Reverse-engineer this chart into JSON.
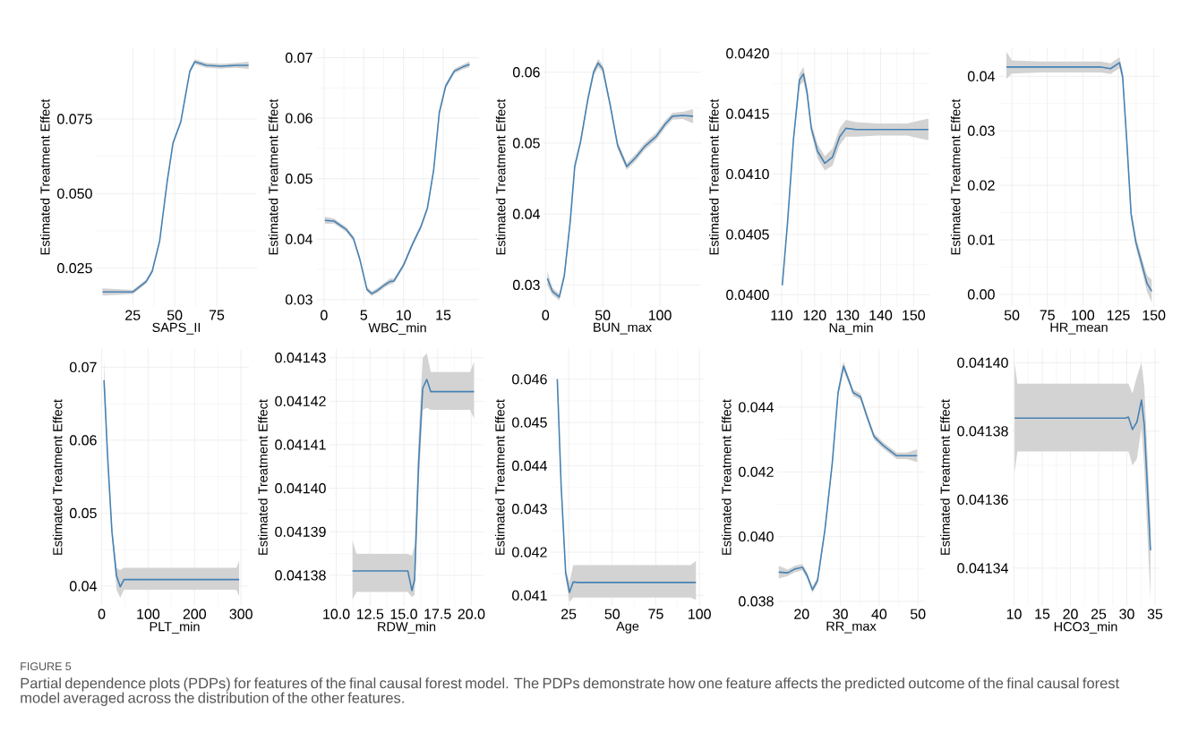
{
  "chart_data": [
    {
      "type": "line",
      "xlabel": "SAPS_II",
      "ylabel": "Estimated Treatment Effect",
      "grid": true,
      "xlim": [
        3,
        99
      ],
      "ylim": [
        0.012,
        0.099
      ],
      "xticks": [
        25,
        50,
        75
      ],
      "yticks": [
        {
          "value": 0.025,
          "label": "0.025"
        },
        {
          "value": 0.05,
          "label": "0.050"
        },
        {
          "value": 0.075,
          "label": "0.075"
        }
      ],
      "annotations": [
        "FIGURE 5",
        "Partial dependence plots (PDPs) for features of the final causal forest model. The PDPs demonstrate how one feature affects the predicted outcome of the final causal forest model averaged across the distribution of the other features."
      ],
      "x": [
        7,
        25,
        33,
        36.6,
        41,
        45.5,
        49,
        53.6,
        59,
        62,
        68.8,
        77.7,
        86.6,
        94
      ],
      "series": [
        {
          "color": "#4682b4",
          "values": [
            0.017,
            0.017,
            0.0205,
            0.024,
            0.034,
            0.054,
            0.067,
            0.074,
            0.091,
            0.0942,
            0.093,
            0.0927,
            0.093,
            0.093
          ],
          "lower": [
            0.0158,
            0.0163,
            0.0198,
            0.0233,
            0.0333,
            0.0533,
            0.0663,
            0.0733,
            0.0903,
            0.0934,
            0.0922,
            0.0919,
            0.0922,
            0.0918
          ],
          "upper": [
            0.0182,
            0.0177,
            0.0212,
            0.0247,
            0.0347,
            0.0547,
            0.0677,
            0.0747,
            0.0917,
            0.095,
            0.0938,
            0.0935,
            0.0938,
            0.0942
          ]
        }
      ]
    },
    {
      "type": "line",
      "xlabel": "WBC_min",
      "ylabel": "Estimated Treatment Effect",
      "grid": true,
      "xlim": [
        -1,
        19.5
      ],
      "ylim": [
        0.0288,
        0.0717
      ],
      "xticks": [
        0,
        5,
        10,
        15
      ],
      "yticks": [
        0.03,
        0.04,
        0.05,
        0.06,
        0.07
      ],
      "x": [
        0.1,
        1.25,
        2.8,
        3.7,
        4.5,
        5.4,
        6.0,
        6.7,
        7.7,
        8.3,
        8.8,
        10.0,
        11.1,
        12.2,
        13.0,
        13.8,
        14.5,
        15.3,
        16.4,
        17.5,
        18.3
      ],
      "series": [
        {
          "color": "#4682b4",
          "values": [
            0.0431,
            0.043,
            0.0416,
            0.0401,
            0.0367,
            0.0317,
            0.031,
            0.0315,
            0.0325,
            0.033,
            0.0331,
            0.0357,
            0.0391,
            0.0421,
            0.0451,
            0.0515,
            0.0609,
            0.0653,
            0.0678,
            0.0685,
            0.0689
          ],
          "lower": [
            0.0425,
            0.0426,
            0.0412,
            0.0397,
            0.0363,
            0.0313,
            0.0306,
            0.0311,
            0.0321,
            0.0325,
            0.0327,
            0.0353,
            0.0387,
            0.0417,
            0.0447,
            0.0511,
            0.0605,
            0.0649,
            0.0674,
            0.0681,
            0.0684
          ],
          "upper": [
            0.0437,
            0.0434,
            0.042,
            0.0405,
            0.0371,
            0.0321,
            0.0314,
            0.0319,
            0.0329,
            0.0335,
            0.0335,
            0.0361,
            0.0395,
            0.0425,
            0.0455,
            0.0519,
            0.0613,
            0.0657,
            0.0682,
            0.0689,
            0.0694
          ]
        }
      ]
    },
    {
      "type": "line",
      "xlabel": "BUN_max",
      "ylabel": "Estimated Treatment Effect",
      "grid": true,
      "xlim": [
        -1.8,
        136
      ],
      "ylim": [
        0.0269,
        0.0635
      ],
      "xticks": [
        0,
        50,
        100
      ],
      "yticks": [
        0.03,
        0.04,
        0.05,
        0.06
      ],
      "x": [
        1.6,
        6,
        12,
        16.4,
        21.6,
        25.5,
        30.6,
        37,
        42,
        46,
        50,
        56.6,
        63,
        71,
        79,
        86.5,
        97,
        104.7,
        111,
        120,
        129
      ],
      "series": [
        {
          "color": "#4682b4",
          "values": [
            0.0309,
            0.0291,
            0.0283,
            0.0313,
            0.039,
            0.0467,
            0.0502,
            0.0562,
            0.06,
            0.0613,
            0.0605,
            0.0553,
            0.0497,
            0.0467,
            0.048,
            0.0495,
            0.051,
            0.0527,
            0.0538,
            0.0539,
            0.0538
          ],
          "lower": [
            0.0299,
            0.0286,
            0.0278,
            0.0308,
            0.0385,
            0.0462,
            0.0497,
            0.0557,
            0.0595,
            0.0607,
            0.06,
            0.0548,
            0.0492,
            0.0462,
            0.0475,
            0.049,
            0.0505,
            0.0522,
            0.0533,
            0.0534,
            0.0528
          ],
          "upper": [
            0.0319,
            0.0296,
            0.0288,
            0.0318,
            0.0395,
            0.0472,
            0.0507,
            0.0567,
            0.0605,
            0.0619,
            0.061,
            0.0558,
            0.0502,
            0.0472,
            0.0485,
            0.05,
            0.0515,
            0.0532,
            0.0543,
            0.0544,
            0.0548
          ]
        }
      ]
    },
    {
      "type": "line",
      "xlabel": "Na_min",
      "ylabel": "Estimated Treatment Effect",
      "grid": true,
      "xlim": [
        107.3,
        154.8
      ],
      "ylim": [
        0.0399,
        0.04205
      ],
      "xticks": [
        110,
        120,
        130,
        140,
        150
      ],
      "yticks": [
        {
          "value": 0.04,
          "label": "0.0400"
        },
        0.0405,
        {
          "value": 0.041,
          "label": "0.0410"
        },
        0.0415,
        {
          "value": 0.042,
          "label": "0.0420"
        }
      ],
      "x": [
        110.2,
        111.8,
        113.6,
        115.4,
        116.6,
        117.7,
        119,
        120.9,
        123.1,
        125.4,
        127.6,
        129.5,
        132.6,
        139,
        148,
        154.5
      ],
      "series": [
        {
          "color": "#4682b4",
          "values": [
            0.04008,
            0.0406,
            0.04129,
            0.04178,
            0.04183,
            0.04168,
            0.04138,
            0.04119,
            0.04109,
            0.04114,
            0.04131,
            0.04138,
            0.04137,
            0.04137,
            0.04137,
            0.04137
          ],
          "lower": [
            0.04007,
            0.04059,
            0.04127,
            0.04173,
            0.04177,
            0.04163,
            0.04134,
            0.04113,
            0.04103,
            0.04107,
            0.04124,
            0.04131,
            0.04131,
            0.04132,
            0.04132,
            0.04128
          ],
          "upper": [
            0.04009,
            0.04061,
            0.04131,
            0.04183,
            0.04189,
            0.04173,
            0.04142,
            0.04125,
            0.04115,
            0.04121,
            0.04138,
            0.04145,
            0.04143,
            0.04142,
            0.04142,
            0.04146
          ]
        }
      ]
    },
    {
      "type": "line",
      "xlabel": "HR_mean",
      "ylabel": "Estimated Treatment Effect",
      "grid": true,
      "xlim": [
        40.5,
        154
      ],
      "ylim": [
        -0.0023,
        0.0453
      ],
      "xticks": [
        50,
        75,
        100,
        125,
        150
      ],
      "yticks": [
        {
          "value": 0,
          "label": "0.00"
        },
        0.01,
        0.02,
        0.03,
        0.04
      ],
      "x": [
        46.2,
        50,
        71,
        92,
        113,
        119.5,
        125.8,
        128,
        131,
        134,
        137.4,
        141.6,
        145.2,
        148.5
      ],
      "series": [
        {
          "color": "#4682b4",
          "values": [
            0.0417,
            0.0417,
            0.0417,
            0.0417,
            0.0417,
            0.0414,
            0.0425,
            0.04,
            0.0279,
            0.0147,
            0.0095,
            0.0055,
            0.002,
            0.0006
          ],
          "lower": [
            0.0395,
            0.0405,
            0.0407,
            0.0407,
            0.0407,
            0.0404,
            0.0415,
            0.039,
            0.027,
            0.0138,
            0.0085,
            0.0043,
            0.0005,
            -0.0015
          ],
          "upper": [
            0.0445,
            0.0429,
            0.0427,
            0.0427,
            0.0427,
            0.0424,
            0.0435,
            0.041,
            0.0288,
            0.0156,
            0.0105,
            0.0067,
            0.0035,
            0.0027
          ]
        }
      ]
    },
    {
      "type": "line",
      "xlabel": "PLT_min",
      "ylabel": "Estimated Treatment Effect",
      "grid": true,
      "xlim": [
        -3,
        317
      ],
      "ylim": [
        0.0373,
        0.0725
      ],
      "xticks": [
        0,
        100,
        200,
        300
      ],
      "yticks": [
        0.04,
        0.05,
        0.06,
        0.07
      ],
      "x": [
        5,
        12.8,
        22,
        32,
        40,
        48,
        61,
        160,
        290,
        296
      ],
      "series": [
        {
          "color": "#4682b4",
          "values": [
            0.0682,
            0.0577,
            0.0475,
            0.0414,
            0.0399,
            0.0409,
            0.0409,
            0.0409,
            0.0409,
            0.0409
          ],
          "lower": [
            0.0675,
            0.0572,
            0.0468,
            0.0395,
            0.0384,
            0.0395,
            0.0395,
            0.0395,
            0.0395,
            0.0386
          ],
          "upper": [
            0.071,
            0.0582,
            0.0482,
            0.0425,
            0.0422,
            0.0425,
            0.0425,
            0.0425,
            0.0425,
            0.0435
          ]
        }
      ]
    },
    {
      "type": "line",
      "xlabel": "RDW_min",
      "ylabel": "Estimated Treatment Effect",
      "grid": true,
      "xlim": [
        9.5,
        20.9
      ],
      "ylim": [
        0.041373,
        0.041432
      ],
      "xticks": [
        {
          "value": 10,
          "label": "10.0"
        },
        12.5,
        {
          "value": 15,
          "label": "15.0"
        },
        17.5,
        {
          "value": 20,
          "label": "20.0"
        }
      ],
      "yticks": [
        0.04138,
        0.04139,
        {
          "value": 0.0414,
          "label": "0.04140"
        },
        0.04141,
        0.04142,
        0.04143
      ],
      "x": [
        11.2,
        11.5,
        15.3,
        15.6,
        15.8,
        16.1,
        16.4,
        16.7,
        17.0,
        18.0,
        19.9,
        20.2
      ],
      "series": [
        {
          "color": "#4682b4",
          "values": [
            0.041381,
            0.041381,
            0.041381,
            0.0413765,
            0.041379,
            0.041406,
            0.041423,
            0.041425,
            0.0414222,
            0.0414222,
            0.0414222,
            0.0414222
          ],
          "lower": [
            0.0413745,
            0.0413762,
            0.0413762,
            0.041375,
            0.0413755,
            0.041401,
            0.041418,
            0.0414185,
            0.041418,
            0.041418,
            0.041418,
            0.041416
          ],
          "upper": [
            0.041388,
            0.0413849,
            0.0413849,
            0.0413845,
            0.041387,
            0.041412,
            0.04143,
            0.041431,
            0.0414267,
            0.0414267,
            0.0414267,
            0.041429
          ]
        }
      ]
    },
    {
      "type": "line",
      "xlabel": "Age",
      "ylabel": "Estimated Treatment Effect",
      "grid": true,
      "xlim": [
        14.7,
        103
      ],
      "ylim": [
        0.04076,
        0.0467
      ],
      "xticks": [
        25,
        50,
        75,
        100
      ],
      "yticks": [
        0.041,
        0.042,
        0.043,
        0.044,
        0.045,
        0.046
      ],
      "x": [
        18.5,
        20.7,
        23.3,
        25.5,
        27.6,
        30.1,
        56.7,
        95,
        98
      ],
      "series": [
        {
          "color": "#4682b4",
          "values": [
            0.046,
            0.04355,
            0.04152,
            0.04107,
            0.04131,
            0.0413,
            0.0413,
            0.0413,
            0.0413
          ],
          "lower": [
            0.0459,
            0.04345,
            0.0414,
            0.04085,
            0.04095,
            0.04095,
            0.04095,
            0.04095,
            0.0409
          ],
          "upper": [
            0.0461,
            0.04365,
            0.0416,
            0.0413,
            0.0417,
            0.0417,
            0.0417,
            0.0417,
            0.0418
          ]
        }
      ]
    },
    {
      "type": "line",
      "xlabel": "RR_max",
      "ylabel": "Estimated Treatment Effect",
      "grid": true,
      "xlim": [
        13.7,
        51.8
      ],
      "ylim": [
        0.03786,
        0.0458
      ],
      "xticks": [
        20,
        30,
        40,
        50
      ],
      "yticks": [
        0.038,
        {
          "value": 0.04,
          "label": "0.040"
        },
        0.042,
        0.044
      ],
      "x": [
        14.1,
        16.4,
        18.3,
        20.2,
        21.4,
        22.8,
        24.1,
        26,
        27.9,
        29.4,
        30.8,
        32.2,
        33.3,
        35.2,
        36.8,
        38.7,
        41,
        44.5,
        47.2,
        49.8
      ],
      "series": [
        {
          "color": "#4682b4",
          "values": [
            0.0389,
            0.03888,
            0.039,
            0.03905,
            0.0388,
            0.03836,
            0.03864,
            0.0402,
            0.04227,
            0.04445,
            0.04527,
            0.04482,
            0.04445,
            0.04432,
            0.04373,
            0.04309,
            0.04282,
            0.0425,
            0.0425,
            0.0425
          ],
          "lower": [
            0.0387,
            0.03878,
            0.0389,
            0.03895,
            0.0387,
            0.03826,
            0.03854,
            0.0401,
            0.04217,
            0.04435,
            0.04512,
            0.04472,
            0.04435,
            0.04422,
            0.04363,
            0.04299,
            0.04272,
            0.0424,
            0.0424,
            0.0423
          ],
          "upper": [
            0.0391,
            0.03898,
            0.0391,
            0.03915,
            0.0389,
            0.03846,
            0.03874,
            0.0403,
            0.04237,
            0.04455,
            0.04542,
            0.04492,
            0.04455,
            0.04442,
            0.04383,
            0.04319,
            0.04292,
            0.0426,
            0.0426,
            0.0427
          ]
        }
      ]
    },
    {
      "type": "line",
      "xlabel": "HCO3_min",
      "ylabel": "Estimated Treatment Effect",
      "grid": true,
      "xlim": [
        9.6,
        35.8
      ],
      "ylim": [
        0.041329,
        0.041404
      ],
      "xticks": [
        10,
        15,
        20,
        25,
        30,
        35
      ],
      "yticks": [
        0.04134,
        0.04136,
        0.04138,
        {
          "value": 0.0414,
          "label": "0.04140"
        }
      ],
      "x": [
        10.1,
        10.6,
        29.7,
        30.3,
        31,
        31.8,
        32.6,
        33.1,
        34.2
      ],
      "series": [
        {
          "color": "#4682b4",
          "values": [
            0.0413838,
            0.0413838,
            0.0413838,
            0.0413841,
            0.0413805,
            0.0413827,
            0.0413891,
            0.0413818,
            0.0413452
          ],
          "lower": [
            0.041368,
            0.0413741,
            0.0413741,
            0.0413741,
            0.04137,
            0.041372,
            0.041381,
            0.041369,
            0.041331
          ],
          "upper": [
            0.0414,
            0.0413939,
            0.0413939,
            0.0413939,
            0.041391,
            0.041396,
            0.0414,
            0.041393,
            0.041354
          ]
        }
      ]
    }
  ]
}
